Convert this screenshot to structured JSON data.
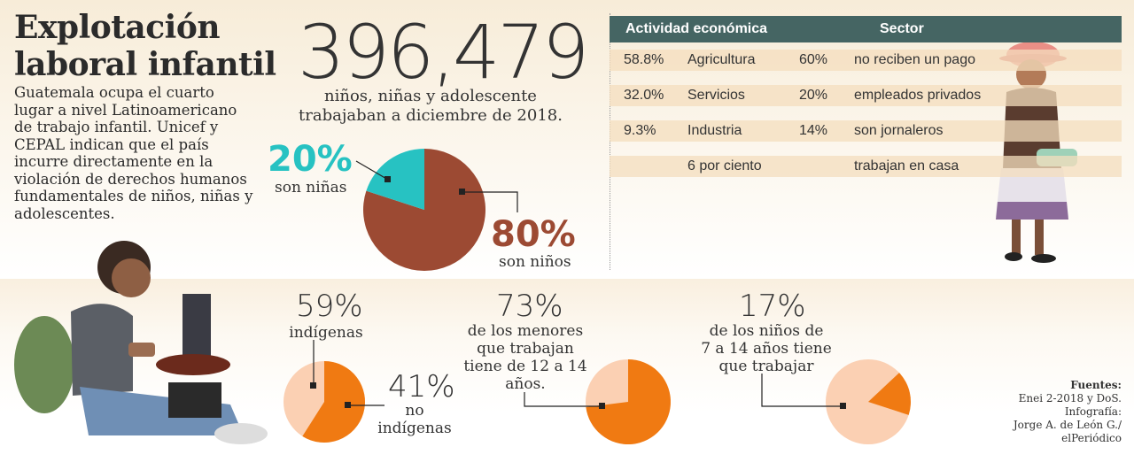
{
  "header": {
    "title_line1": "Explotación",
    "title_line2": "laboral infantil",
    "intro": "Guatemala ocupa el cuarto lugar a nivel Latinoamericano de trabajo infantil. Unicef y CEPAL indican que el país incurre directamente en la violación de derechos humanos fundamentales de niños, niñas y adolescentes."
  },
  "headline_stat": {
    "number": "396,479",
    "caption_line1": "niños, niñas y adolescente",
    "caption_line2": "trabajaban a diciembre de 2018."
  },
  "gender": {
    "girls_pct": "20%",
    "girls_label": "son niñas",
    "boys_pct": "80%",
    "boys_label": "son niños",
    "colors": {
      "girls": "#27c2c2",
      "boys": "#9c4a33"
    }
  },
  "table": {
    "col1_header": "Actividad económica",
    "col2_header": "Sector",
    "rows": [
      {
        "pct": "58.8%",
        "activity": "Agricultura",
        "sector_pct": "60%",
        "sector": "no reciben un pago"
      },
      {
        "pct": "32.0%",
        "activity": "Servicios",
        "sector_pct": "20%",
        "sector": "empleados privados"
      },
      {
        "pct": "9.3%",
        "activity": "Industria",
        "sector_pct": "14%",
        "sector": "son jornaleros"
      },
      {
        "pct": "",
        "activity": "6 por ciento",
        "sector_pct": "",
        "sector": "trabajan en casa"
      }
    ],
    "header_color": "#456563"
  },
  "stats": {
    "indigenous": {
      "pct": "59%",
      "label": "indígenas",
      "other_pct": "41%",
      "other_label_line1": "no",
      "other_label_line2": "indígenas",
      "value": 0.59
    },
    "age": {
      "pct": "73%",
      "line1": "de los menores",
      "line2": "que trabajan",
      "line3": "tiene de 12 a 14",
      "line4": "años.",
      "value": 0.73
    },
    "young": {
      "pct": "17%",
      "line1": "de los niños de",
      "line2": "7 a 14 años tiene",
      "line3": "que trabajar",
      "value": 0.17
    },
    "colors": {
      "accent": "#f07a12",
      "light": "#fbd0b3"
    }
  },
  "sources": {
    "heading": "Fuentes:",
    "line1": "Enei 2-2018 y DoS.",
    "line2": "Infografía:",
    "line3": "Jorge A. de León G./",
    "line4": "elPeriódico"
  }
}
